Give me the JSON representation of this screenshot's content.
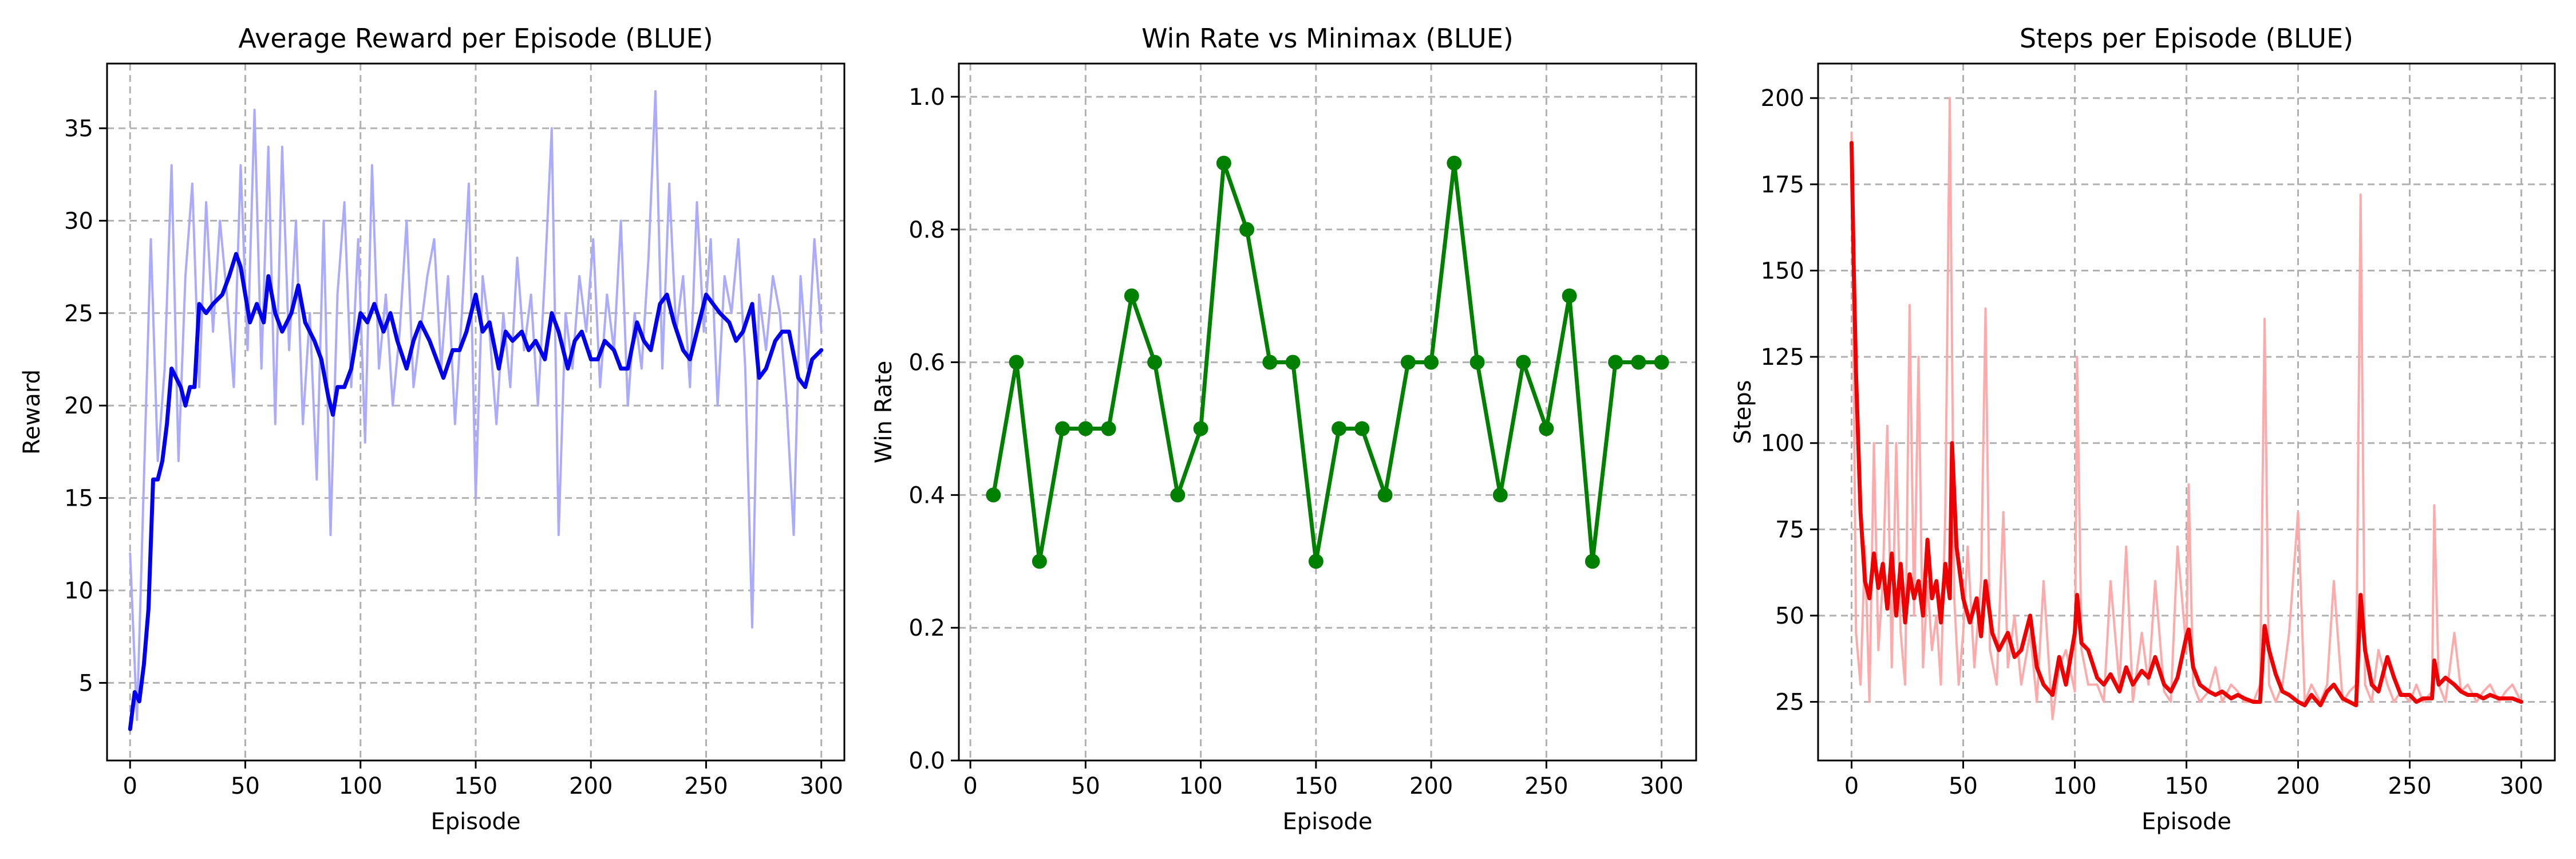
{
  "chart_data": [
    {
      "type": "line",
      "title": "Average Reward per Episode (BLUE)",
      "xlabel": "Episode",
      "ylabel": "Reward",
      "xlim": [
        -10,
        310
      ],
      "ylim": [
        0.8,
        38.5
      ],
      "xticks": [
        0,
        50,
        100,
        150,
        200,
        250,
        300
      ],
      "yticks": [
        5,
        10,
        15,
        20,
        25,
        30,
        35
      ],
      "grid": true,
      "series": [
        {
          "role": "raw",
          "color": "#aaaaff",
          "x": [
            0,
            3,
            6,
            9,
            12,
            15,
            18,
            21,
            24,
            27,
            30,
            33,
            36,
            39,
            42,
            45,
            48,
            51,
            54,
            57,
            60,
            63,
            66,
            69,
            72,
            75,
            78,
            81,
            84,
            87,
            90,
            93,
            96,
            99,
            102,
            105,
            108,
            111,
            114,
            117,
            120,
            123,
            126,
            129,
            132,
            135,
            138,
            141,
            144,
            147,
            150,
            153,
            156,
            159,
            162,
            165,
            168,
            171,
            174,
            177,
            180,
            183,
            186,
            189,
            192,
            195,
            198,
            201,
            204,
            207,
            210,
            213,
            216,
            219,
            222,
            225,
            228,
            231,
            234,
            237,
            240,
            243,
            246,
            249,
            252,
            255,
            258,
            261,
            264,
            267,
            270,
            273,
            276,
            279,
            282,
            285,
            288,
            291,
            294,
            297,
            300
          ],
          "y": [
            12,
            3,
            16,
            29,
            17,
            22,
            33,
            17,
            27,
            32,
            21,
            31,
            24,
            30,
            26,
            21,
            33,
            23,
            36,
            22,
            34,
            19,
            34,
            23,
            30,
            19,
            25,
            16,
            30,
            13,
            26,
            31,
            21,
            29,
            18,
            33,
            22,
            26,
            20,
            24,
            30,
            21,
            24,
            27,
            29,
            22,
            27,
            19,
            25,
            32,
            15,
            27,
            24,
            19,
            25,
            21,
            28,
            23,
            26,
            20,
            27,
            35,
            13,
            25,
            22,
            27,
            24,
            29,
            21,
            26,
            23,
            30,
            20,
            25,
            22,
            28,
            37,
            22,
            32,
            24,
            27,
            21,
            31,
            24,
            29,
            20,
            27,
            25,
            29,
            22,
            8,
            26,
            23,
            27,
            25,
            20,
            13,
            27,
            22,
            29,
            24
          ]
        },
        {
          "role": "moving-average",
          "color": "#0000ee",
          "x": [
            0,
            2,
            4,
            6,
            8,
            10,
            12,
            14,
            16,
            18,
            20,
            22,
            24,
            26,
            28,
            30,
            33,
            36,
            40,
            43,
            46,
            48,
            50,
            52,
            55,
            58,
            60,
            63,
            66,
            70,
            73,
            76,
            80,
            83,
            86,
            88,
            90,
            93,
            96,
            100,
            103,
            106,
            110,
            113,
            116,
            120,
            123,
            126,
            130,
            133,
            136,
            140,
            143,
            146,
            150,
            153,
            156,
            160,
            163,
            166,
            170,
            173,
            176,
            180,
            183,
            186,
            190,
            193,
            196,
            200,
            203,
            206,
            210,
            213,
            216,
            220,
            223,
            226,
            230,
            233,
            236,
            240,
            243,
            246,
            250,
            253,
            256,
            260,
            263,
            266,
            270,
            273,
            276,
            280,
            283,
            286,
            290,
            293,
            296,
            300
          ],
          "y": [
            2.5,
            4.5,
            4,
            6,
            9,
            16,
            16,
            17,
            19,
            22,
            21.5,
            21,
            20,
            21,
            21,
            25.5,
            25,
            25.5,
            26,
            27,
            28.2,
            27.5,
            26,
            24.5,
            25.5,
            24.5,
            27,
            25,
            24,
            25,
            26.5,
            24.5,
            23.5,
            22.5,
            20.5,
            19.5,
            21,
            21,
            22,
            25,
            24.5,
            25.5,
            24,
            25,
            23.5,
            22,
            23.5,
            24.5,
            23.5,
            22.5,
            21.5,
            23,
            23,
            24,
            26,
            24,
            24.5,
            22,
            24,
            23.5,
            24,
            23,
            23.5,
            22.5,
            25,
            24,
            22,
            23.5,
            24,
            22.5,
            22.5,
            23.5,
            23,
            22,
            22,
            24.5,
            23.5,
            23,
            25.5,
            26,
            24.5,
            23,
            22.5,
            24,
            26,
            25.5,
            25,
            24.5,
            23.5,
            24,
            25.5,
            21.5,
            22,
            23.5,
            24,
            24,
            21.5,
            21,
            22.5,
            23
          ]
        }
      ]
    },
    {
      "type": "line",
      "title": "Win Rate vs Minimax (BLUE)",
      "xlabel": "Episode",
      "ylabel": "Win Rate",
      "xlim": [
        -5,
        315
      ],
      "ylim": [
        0,
        1.05
      ],
      "xticks": [
        0,
        50,
        100,
        150,
        200,
        250,
        300
      ],
      "yticks": [
        0.0,
        0.2,
        0.4,
        0.6,
        0.8,
        1.0
      ],
      "grid": true,
      "series": [
        {
          "role": "win-rate",
          "color": "#008000",
          "markers": true,
          "x": [
            10,
            20,
            30,
            40,
            50,
            60,
            70,
            80,
            90,
            100,
            110,
            120,
            130,
            140,
            150,
            160,
            170,
            180,
            190,
            200,
            210,
            220,
            230,
            240,
            250,
            260,
            270,
            280,
            290,
            300
          ],
          "y": [
            0.4,
            0.6,
            0.3,
            0.5,
            0.5,
            0.5,
            0.7,
            0.6,
            0.4,
            0.5,
            0.9,
            0.8,
            0.6,
            0.6,
            0.3,
            0.5,
            0.5,
            0.4,
            0.6,
            0.6,
            0.9,
            0.6,
            0.4,
            0.6,
            0.5,
            0.7,
            0.3,
            0.6,
            0.6,
            0.6
          ]
        }
      ]
    },
    {
      "type": "line",
      "title": "Steps per Episode (BLUE)",
      "xlabel": "Episode",
      "ylabel": "Steps",
      "xlim": [
        -15,
        315
      ],
      "ylim": [
        8,
        210
      ],
      "xticks": [
        0,
        50,
        100,
        150,
        200,
        250,
        300
      ],
      "yticks": [
        25,
        50,
        75,
        100,
        125,
        150,
        175,
        200
      ],
      "grid": true,
      "series": [
        {
          "role": "raw",
          "color": "#ffaaaa",
          "x": [
            0,
            2,
            4,
            6,
            8,
            10,
            12,
            14,
            16,
            18,
            20,
            22,
            24,
            26,
            28,
            30,
            32,
            34,
            36,
            38,
            40,
            42,
            44,
            46,
            48,
            50,
            52,
            55,
            58,
            60,
            62,
            65,
            68,
            70,
            73,
            76,
            80,
            83,
            86,
            90,
            93,
            96,
            100,
            101,
            103,
            106,
            110,
            113,
            116,
            120,
            123,
            126,
            130,
            133,
            136,
            140,
            143,
            146,
            150,
            151,
            153,
            156,
            160,
            163,
            166,
            170,
            173,
            176,
            180,
            183,
            185,
            187,
            190,
            193,
            196,
            200,
            203,
            206,
            210,
            213,
            216,
            220,
            223,
            226,
            228,
            230,
            233,
            236,
            240,
            243,
            246,
            250,
            253,
            256,
            260,
            261,
            263,
            266,
            270,
            273,
            276,
            280,
            283,
            286,
            290,
            293,
            296,
            300
          ],
          "y": [
            190,
            45,
            30,
            70,
            25,
            100,
            40,
            60,
            105,
            35,
            100,
            45,
            30,
            140,
            50,
            125,
            35,
            60,
            40,
            50,
            30,
            80,
            200,
            55,
            30,
            45,
            70,
            35,
            60,
            139,
            40,
            30,
            80,
            35,
            50,
            30,
            45,
            25,
            60,
            20,
            35,
            40,
            28,
            125,
            40,
            30,
            30,
            25,
            60,
            30,
            70,
            25,
            45,
            30,
            60,
            28,
            25,
            70,
            40,
            88,
            30,
            25,
            28,
            35,
            25,
            30,
            28,
            25,
            25,
            30,
            136,
            30,
            25,
            30,
            45,
            80,
            25,
            30,
            25,
            30,
            60,
            25,
            28,
            30,
            172,
            30,
            25,
            40,
            30,
            25,
            28,
            25,
            30,
            25,
            28,
            82,
            30,
            25,
            45,
            28,
            30,
            25,
            28,
            30,
            25,
            28,
            30,
            25
          ]
        },
        {
          "role": "moving-average",
          "color": "#ee0000",
          "x": [
            0,
            1,
            2,
            4,
            6,
            8,
            10,
            12,
            14,
            16,
            18,
            20,
            22,
            24,
            26,
            28,
            30,
            32,
            34,
            36,
            38,
            40,
            42,
            44,
            45,
            47,
            50,
            53,
            56,
            58,
            60,
            63,
            66,
            70,
            73,
            76,
            80,
            83,
            86,
            90,
            93,
            96,
            100,
            101,
            103,
            106,
            110,
            113,
            116,
            120,
            123,
            126,
            130,
            133,
            136,
            140,
            143,
            146,
            150,
            151,
            153,
            156,
            160,
            163,
            166,
            170,
            173,
            176,
            180,
            183,
            185,
            187,
            190,
            193,
            196,
            200,
            203,
            206,
            210,
            213,
            216,
            220,
            223,
            226,
            228,
            230,
            233,
            236,
            240,
            243,
            246,
            250,
            253,
            256,
            260,
            261,
            263,
            266,
            270,
            273,
            276,
            280,
            283,
            286,
            290,
            293,
            296,
            300
          ],
          "y": [
            187,
            150,
            120,
            80,
            60,
            55,
            68,
            58,
            65,
            52,
            68,
            50,
            65,
            48,
            62,
            55,
            60,
            50,
            72,
            55,
            60,
            48,
            65,
            55,
            100,
            70,
            55,
            48,
            55,
            44,
            60,
            45,
            40,
            45,
            38,
            40,
            50,
            35,
            30,
            27,
            38,
            30,
            45,
            56,
            42,
            40,
            32,
            30,
            33,
            28,
            35,
            30,
            34,
            32,
            38,
            30,
            28,
            32,
            44,
            46,
            35,
            30,
            28,
            27,
            28,
            26,
            27,
            26,
            25,
            25,
            47,
            40,
            33,
            28,
            27,
            25,
            24,
            27,
            24,
            28,
            30,
            26,
            25,
            24,
            56,
            40,
            30,
            28,
            38,
            32,
            27,
            27,
            25,
            26,
            26,
            37,
            30,
            32,
            30,
            28,
            27,
            27,
            26,
            27,
            26,
            26,
            26,
            25
          ]
        }
      ]
    }
  ]
}
